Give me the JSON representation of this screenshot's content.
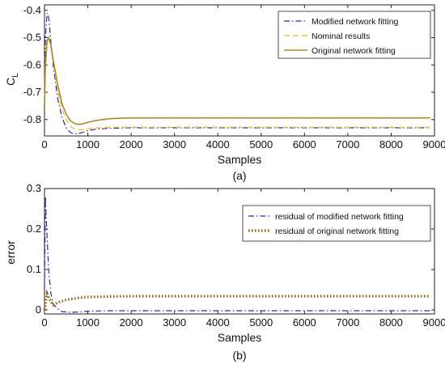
{
  "chart_data": [
    {
      "type": "line",
      "caption": "(a)",
      "xlabel": "Samples",
      "ylabel": "C",
      "ylabel_sub": "L",
      "xlim": [
        0,
        9000
      ],
      "ylim": [
        -0.86,
        -0.38
      ],
      "xticks": [
        0,
        1000,
        2000,
        3000,
        4000,
        5000,
        6000,
        7000,
        8000,
        9000
      ],
      "yticks": [
        -0.4,
        -0.5,
        -0.6,
        -0.7,
        -0.8
      ],
      "grid": false,
      "legend": "top-right",
      "series": [
        {
          "name": "Modified network fitting",
          "style": "dashdot",
          "color": "#2a2aa8",
          "x": [
            0,
            20,
            60,
            100,
            150,
            200,
            300,
            400,
            500,
            600,
            700,
            800,
            900,
            1000,
            1200,
            1500,
            2000,
            3000,
            4000,
            5000,
            6000,
            7000,
            8000,
            8900
          ],
          "y": [
            -0.7,
            -0.5,
            -0.41,
            -0.43,
            -0.52,
            -0.6,
            -0.72,
            -0.79,
            -0.83,
            -0.848,
            -0.852,
            -0.85,
            -0.846,
            -0.84,
            -0.835,
            -0.832,
            -0.83,
            -0.83,
            -0.83,
            -0.83,
            -0.83,
            -0.83,
            -0.83,
            -0.83
          ]
        },
        {
          "name": "Nominal results",
          "style": "dashed",
          "color": "#e6c640",
          "x": [
            0,
            20,
            60,
            100,
            150,
            200,
            300,
            400,
            500,
            600,
            700,
            800,
            900,
            1000,
            1200,
            1500,
            2000,
            3000,
            4000,
            5000,
            6000,
            7000,
            8000,
            8900
          ],
          "y": [
            -0.75,
            -0.62,
            -0.52,
            -0.5,
            -0.53,
            -0.59,
            -0.69,
            -0.76,
            -0.8,
            -0.825,
            -0.835,
            -0.838,
            -0.836,
            -0.833,
            -0.83,
            -0.828,
            -0.828,
            -0.828,
            -0.828,
            -0.828,
            -0.828,
            -0.828,
            -0.828,
            -0.828
          ]
        },
        {
          "name": "Original network fitting",
          "style": "solid",
          "color": "#b0882a",
          "x": [
            0,
            20,
            60,
            100,
            150,
            200,
            300,
            400,
            500,
            600,
            700,
            800,
            900,
            1000,
            1200,
            1500,
            1800,
            2000,
            3000,
            4000,
            5000,
            6000,
            7000,
            8000,
            8900
          ],
          "y": [
            -0.75,
            -0.6,
            -0.51,
            -0.5,
            -0.53,
            -0.58,
            -0.67,
            -0.74,
            -0.78,
            -0.805,
            -0.815,
            -0.818,
            -0.815,
            -0.81,
            -0.803,
            -0.797,
            -0.795,
            -0.794,
            -0.794,
            -0.794,
            -0.794,
            -0.794,
            -0.794,
            -0.794,
            -0.794
          ]
        }
      ]
    },
    {
      "type": "line",
      "caption": "(b)",
      "xlabel": "Samples",
      "ylabel": "error",
      "xlim": [
        0,
        9000
      ],
      "ylim": [
        -0.01,
        0.3
      ],
      "xticks": [
        0,
        1000,
        2000,
        3000,
        4000,
        5000,
        6000,
        7000,
        8000,
        9000
      ],
      "yticks": [
        0,
        0.1,
        0.2,
        0.3
      ],
      "grid": false,
      "legend": "top-right",
      "series": [
        {
          "name": "residual of modified network fitting",
          "style": "dashdot",
          "color": "#2a2aa8",
          "x": [
            0,
            20,
            50,
            100,
            150,
            200,
            300,
            400,
            600,
            800,
            1000,
            1500,
            2000,
            3000,
            4000,
            5000,
            6000,
            7000,
            8000,
            8900
          ],
          "y": [
            0.05,
            0.28,
            0.2,
            0.09,
            0.04,
            0.015,
            0.003,
            -0.004,
            -0.006,
            -0.005,
            -0.003,
            -0.002,
            -0.002,
            -0.002,
            -0.002,
            -0.002,
            -0.002,
            -0.002,
            -0.002,
            -0.002
          ]
        },
        {
          "name": "residual of original network fitting",
          "style": "dotted",
          "color": "#8a6a10",
          "x": [
            0,
            30,
            60,
            100,
            150,
            200,
            300,
            500,
            800,
            1000,
            1500,
            2000,
            3000,
            4000,
            5000,
            6000,
            7000,
            8000,
            8900
          ],
          "y": [
            0.0,
            0.02,
            0.04,
            0.03,
            0.02,
            0.012,
            0.018,
            0.025,
            0.03,
            0.032,
            0.033,
            0.034,
            0.034,
            0.034,
            0.034,
            0.034,
            0.034,
            0.034,
            0.034
          ]
        }
      ]
    }
  ]
}
